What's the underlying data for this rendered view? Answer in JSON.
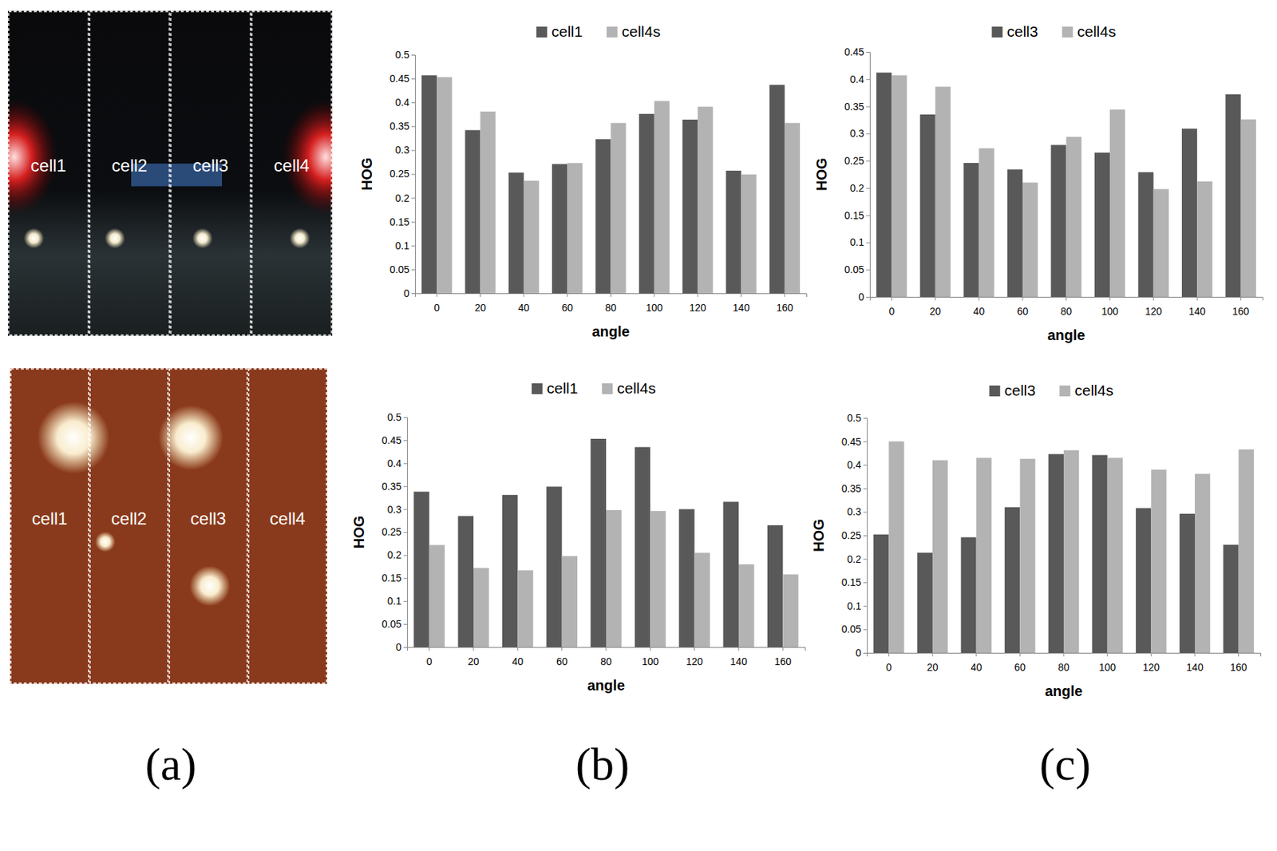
{
  "chart_data": [
    {
      "type": "bar",
      "categories": [
        0,
        20,
        40,
        60,
        80,
        100,
        120,
        140,
        160
      ],
      "x_label": "angle",
      "y_label": "HOG",
      "ylim": [
        0,
        0.5
      ],
      "yticks": [
        0,
        0.05,
        0.1,
        0.15,
        0.2,
        0.25,
        0.3,
        0.35,
        0.4,
        0.45,
        0.5
      ],
      "grid": false,
      "legend": "top",
      "series": [
        {
          "name": "cell1",
          "color": "#595959",
          "values": [
            0.457,
            0.342,
            0.253,
            0.271,
            0.323,
            0.376,
            0.364,
            0.257,
            0.437
          ]
        },
        {
          "name": "cell4s",
          "color": "#b3b3b3",
          "values": [
            0.453,
            0.381,
            0.236,
            0.273,
            0.357,
            0.403,
            0.391,
            0.249,
            0.357
          ]
        }
      ]
    },
    {
      "type": "bar",
      "categories": [
        0,
        20,
        40,
        60,
        80,
        100,
        120,
        140,
        160
      ],
      "x_label": "angle",
      "y_label": "HOG",
      "ylim": [
        0,
        0.45
      ],
      "yticks": [
        0,
        0.05,
        0.1,
        0.15,
        0.2,
        0.25,
        0.3,
        0.35,
        0.4,
        0.45
      ],
      "grid": false,
      "legend": "top",
      "series": [
        {
          "name": "cell3",
          "color": "#595959",
          "values": [
            0.412,
            0.335,
            0.246,
            0.234,
            0.279,
            0.265,
            0.229,
            0.309,
            0.372
          ]
        },
        {
          "name": "cell4s",
          "color": "#b3b3b3",
          "values": [
            0.407,
            0.386,
            0.273,
            0.21,
            0.294,
            0.344,
            0.198,
            0.212,
            0.326
          ]
        }
      ]
    },
    {
      "type": "bar",
      "categories": [
        0,
        20,
        40,
        60,
        80,
        100,
        120,
        140,
        160
      ],
      "x_label": "angle",
      "y_label": "HOG",
      "ylim": [
        0,
        0.5
      ],
      "yticks": [
        0,
        0.05,
        0.1,
        0.15,
        0.2,
        0.25,
        0.3,
        0.35,
        0.4,
        0.45,
        0.5
      ],
      "grid": false,
      "legend": "top",
      "series": [
        {
          "name": "cell1",
          "color": "#595959",
          "values": [
            0.338,
            0.285,
            0.331,
            0.349,
            0.453,
            0.435,
            0.3,
            0.316,
            0.265
          ]
        },
        {
          "name": "cell4s",
          "color": "#b3b3b3",
          "values": [
            0.222,
            0.172,
            0.167,
            0.198,
            0.298,
            0.296,
            0.205,
            0.18,
            0.158
          ]
        }
      ]
    },
    {
      "type": "bar",
      "categories": [
        0,
        20,
        40,
        60,
        80,
        100,
        120,
        140,
        160
      ],
      "x_label": "angle",
      "y_label": "HOG",
      "ylim": [
        0,
        0.5
      ],
      "yticks": [
        0,
        0.05,
        0.1,
        0.15,
        0.2,
        0.25,
        0.3,
        0.35,
        0.4,
        0.45,
        0.5
      ],
      "grid": false,
      "legend": "top",
      "series": [
        {
          "name": "cell3",
          "color": "#595959",
          "values": [
            0.252,
            0.213,
            0.246,
            0.31,
            0.423,
            0.421,
            0.308,
            0.296,
            0.23
          ]
        },
        {
          "name": "cell4s",
          "color": "#b3b3b3",
          "values": [
            0.45,
            0.41,
            0.415,
            0.413,
            0.431,
            0.415,
            0.39,
            0.381,
            0.433
          ]
        }
      ]
    }
  ],
  "images": [
    {
      "cells": [
        "cell1",
        "cell2",
        "cell3",
        "cell4"
      ]
    },
    {
      "cells": [
        "cell1",
        "cell2",
        "cell3",
        "cell4"
      ]
    }
  ],
  "panel_labels": [
    "(a)",
    "(b)",
    "(c)"
  ]
}
